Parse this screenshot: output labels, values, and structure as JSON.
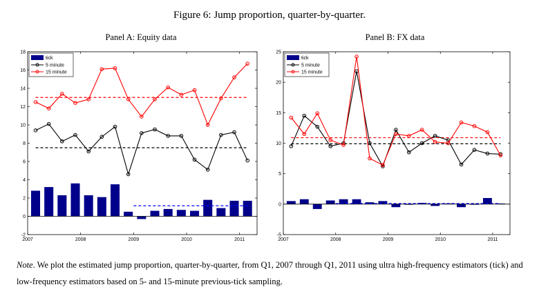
{
  "figure_title": "Figure 6: Jump proportion, quarter-by-quarter.",
  "note": {
    "label": "Note",
    "text": ". We plot the estimated jump proportion, quarter-by-quarter, from Q1, 2007 through Q1, 2011 using ultra high-frequency estimators (tick) and low-frequency estimators based on 5- and 15-minute previous-tick sampling."
  },
  "colors": {
    "tick": "#00008B",
    "five_minute": "#000000",
    "fifteen_minute": "#FF0000",
    "tick_mean": "#0000FF"
  },
  "chart_data": [
    {
      "type": "bar",
      "title": "Panel A: Equity data",
      "xlim": [
        2007,
        2011.33
      ],
      "ylim": [
        -2,
        18
      ],
      "xticks": [
        2007,
        2008,
        2009,
        2010,
        2011
      ],
      "yticks": [
        -2,
        0,
        2,
        4,
        6,
        8,
        10,
        12,
        14,
        16,
        18
      ],
      "x": [
        2007.15,
        2007.4,
        2007.65,
        2007.9,
        2008.15,
        2008.4,
        2008.65,
        2008.9,
        2009.15,
        2009.4,
        2009.65,
        2009.9,
        2010.15,
        2010.4,
        2010.65,
        2010.9,
        2011.15
      ],
      "legend_position": "top-left",
      "series": [
        {
          "name": "tick",
          "kind": "bar",
          "values": [
            2.8,
            3.2,
            2.3,
            3.6,
            2.3,
            2.1,
            3.5,
            0.5,
            -0.3,
            0.6,
            0.8,
            0.7,
            0.6,
            1.8,
            0.9,
            1.7,
            1.7
          ]
        },
        {
          "name": "5 minute",
          "kind": "line",
          "values": [
            9.4,
            10.1,
            8.2,
            8.9,
            7.1,
            8.7,
            9.8,
            4.6,
            9.1,
            9.5,
            8.8,
            8.8,
            6.2,
            5.1,
            8.9,
            9.2,
            6.1
          ]
        },
        {
          "name": "15 minute",
          "kind": "line",
          "values": [
            12.5,
            11.8,
            13.4,
            12.4,
            12.8,
            16.1,
            16.2,
            12.8,
            10.9,
            12.8,
            14.1,
            13.3,
            13.8,
            10.0,
            12.9,
            15.2,
            16.7
          ]
        }
      ],
      "reference_lines": [
        {
          "series": "5 minute",
          "value": 7.5
        },
        {
          "series": "15 minute",
          "value": 13.0
        },
        {
          "series": "tick",
          "value": 1.15,
          "x_start": 2009.0
        }
      ]
    },
    {
      "type": "bar",
      "title": "Panel B: FX data",
      "xlim": [
        2007,
        2011.33
      ],
      "ylim": [
        -5,
        25
      ],
      "xticks": [
        2007,
        2008,
        2009,
        2010,
        2011
      ],
      "yticks": [
        -5,
        0,
        5,
        10,
        15,
        20,
        25
      ],
      "x": [
        2007.15,
        2007.4,
        2007.65,
        2007.9,
        2008.15,
        2008.4,
        2008.65,
        2008.9,
        2009.15,
        2009.4,
        2009.65,
        2009.9,
        2010.15,
        2010.4,
        2010.65,
        2010.9,
        2011.15
      ],
      "legend_position": "top-left",
      "series": [
        {
          "name": "tick",
          "kind": "bar",
          "values": [
            0.5,
            0.8,
            -0.8,
            0.6,
            0.8,
            0.8,
            0.3,
            0.5,
            -0.5,
            -0.1,
            0.2,
            -0.3,
            0.1,
            -0.5,
            -0.1,
            1.0,
            0.1
          ]
        },
        {
          "name": "5 minute",
          "kind": "line",
          "values": [
            9.5,
            14.5,
            12.7,
            9.5,
            10.0,
            21.8,
            10.0,
            6.2,
            12.2,
            8.5,
            10.0,
            11.2,
            10.5,
            6.5,
            8.9,
            8.3,
            8.2
          ]
        },
        {
          "name": "15 minute",
          "kind": "line",
          "values": [
            14.2,
            11.5,
            14.9,
            10.5,
            9.7,
            24.2,
            7.5,
            6.4,
            11.5,
            11.2,
            12.2,
            10.2,
            10.0,
            13.4,
            12.8,
            11.8,
            8.0
          ]
        }
      ],
      "reference_lines": [
        {
          "series": "5 minute",
          "value": 9.9
        },
        {
          "series": "15 minute",
          "value": 10.9
        },
        {
          "series": "tick",
          "value": 0.1,
          "x_start": 2008.0
        }
      ]
    }
  ]
}
